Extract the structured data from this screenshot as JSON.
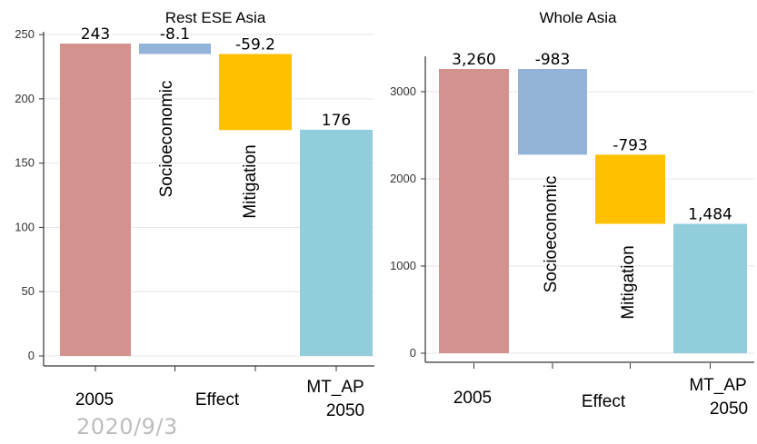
{
  "footer_date": "2020/9/3",
  "colors": {
    "base": "#d4928f",
    "socioeconomic": "#94b3d9",
    "mitigation": "#ffc000",
    "final": "#92cddc"
  },
  "chart_data": [
    {
      "type": "bar",
      "title": "Rest ESE Asia",
      "categories": [
        "2005",
        "Socioeconomic",
        "Mitigation",
        "MT_AP 2050"
      ],
      "x_tick_labels": [
        "2005",
        "Effect",
        "MT_AP",
        "2050"
      ],
      "values": [
        243,
        -8.1,
        -59.2,
        176
      ],
      "value_labels": [
        "243",
        "-8.1",
        "-59.2",
        "176"
      ],
      "ylim": [
        0,
        250
      ],
      "yticks": [
        0,
        50,
        100,
        150,
        200,
        250
      ],
      "grid": true
    },
    {
      "type": "bar",
      "title": "Whole Asia",
      "categories": [
        "2005",
        "Socioeconomic",
        "Mitigation",
        "MT_AP 2050"
      ],
      "x_tick_labels": [
        "2005",
        "Effect",
        "MT_AP",
        "2050"
      ],
      "values": [
        3260,
        -983,
        -793,
        1484
      ],
      "value_labels": [
        "3,260",
        "-983",
        "-793",
        "1,484"
      ],
      "ylim": [
        0,
        3300
      ],
      "yticks": [
        0,
        1000,
        2000,
        3000
      ],
      "grid": true
    }
  ]
}
